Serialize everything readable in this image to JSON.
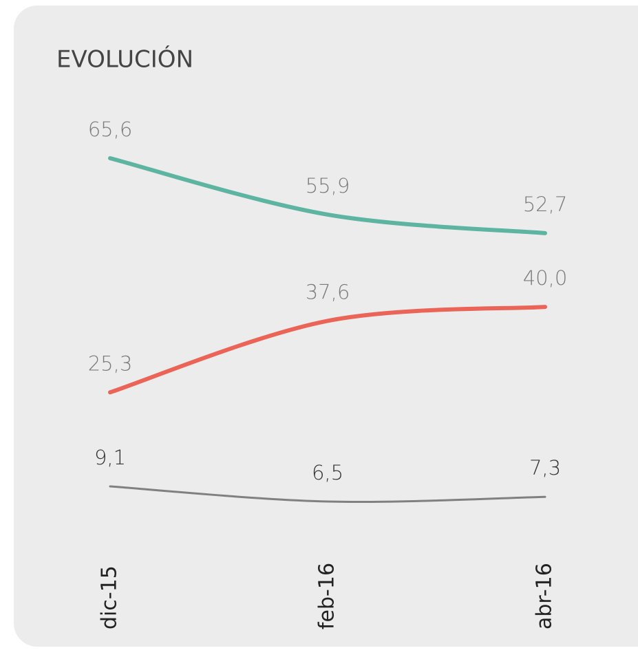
{
  "chart_data": {
    "type": "line",
    "title": "EVOLUCIÓN",
    "categories": [
      "dic-15",
      "feb-16",
      "abr-16"
    ],
    "series": [
      {
        "color": "#5db4a1",
        "values": [
          65.6,
          55.9,
          52.7
        ],
        "value_labels": [
          "65,6",
          "55,9",
          "52,7"
        ]
      },
      {
        "color": "#ea6457",
        "values": [
          25.3,
          37.6,
          40.0
        ],
        "value_labels": [
          "25,3",
          "37,6",
          "40,0"
        ]
      },
      {
        "color": "#808080",
        "values": [
          9.1,
          6.5,
          7.3
        ],
        "value_labels": [
          "9,1",
          "6,5",
          "7,3"
        ]
      }
    ]
  }
}
